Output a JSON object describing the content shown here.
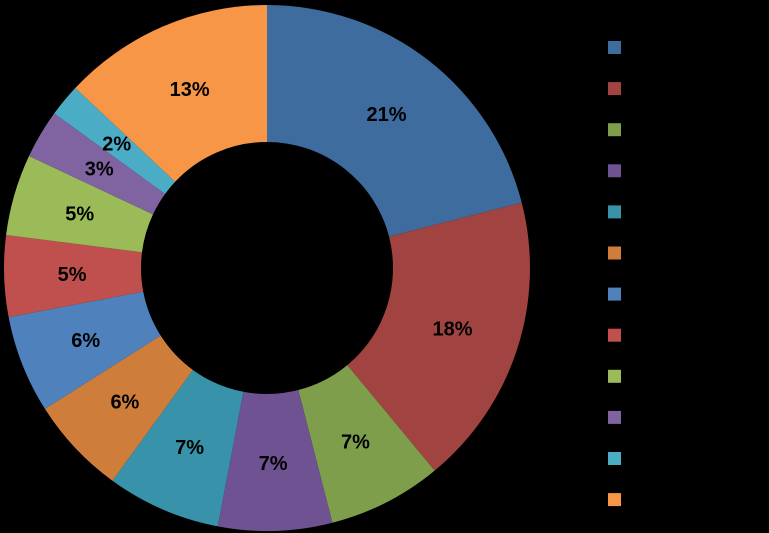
{
  "page": {
    "background_color": "#000000",
    "title": ""
  },
  "chart_data": {
    "type": "pie",
    "subtype": "donut",
    "title": "",
    "values": [
      21,
      18,
      7,
      7,
      7,
      6,
      6,
      5,
      5,
      3,
      2,
      13
    ],
    "unit": "%",
    "data_labels": [
      "21%",
      "18%",
      "7%",
      "7%",
      "7%",
      "6%",
      "6%",
      "5%",
      "5%",
      "3%",
      "2%",
      "13%"
    ],
    "data_label_color": "#000000",
    "series_colors": [
      "#3F6C9E",
      "#A04341",
      "#7E9E4C",
      "#6E5291",
      "#3792AA",
      "#CE7D3B",
      "#4F81BD",
      "#C0504D",
      "#9BBB59",
      "#8064A2",
      "#4BACC6",
      "#F79646"
    ],
    "start_angle_deg": 0,
    "direction": "clockwise",
    "hole_ratio": 0.48,
    "legend": {
      "position": "right",
      "labels_visible": false,
      "labels": [
        "",
        "",
        "",
        "",
        "",
        "",
        "",
        "",
        "",
        "",
        "",
        ""
      ]
    }
  }
}
